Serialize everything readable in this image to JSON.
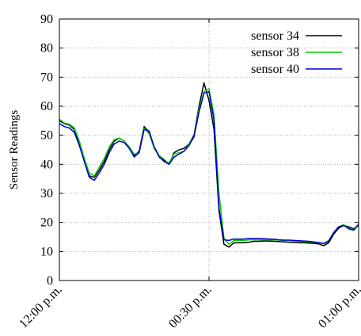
{
  "chart_data": {
    "type": "line",
    "title": "",
    "xlabel": "",
    "ylabel": "Sensor Readings",
    "ylim": [
      0,
      90
    ],
    "xlim": [
      "12:00 p.m.",
      "01:00 p.m."
    ],
    "y_ticks": [
      0,
      10,
      20,
      30,
      40,
      50,
      60,
      70,
      80,
      90
    ],
    "x_ticks": [
      {
        "minute": 0,
        "label": "12:00 p.m."
      },
      {
        "minute": 30,
        "label": "00:30 p.m."
      },
      {
        "minute": 60,
        "label": "01:00 p.m."
      }
    ],
    "grid": true,
    "legend_position": "top-right",
    "x_minutes": [
      0,
      1,
      2,
      3,
      4,
      5,
      6,
      7,
      8,
      9,
      10,
      11,
      12,
      13,
      14,
      15,
      16,
      17,
      18,
      19,
      20,
      21,
      22,
      23,
      24,
      25,
      26,
      27,
      28,
      29,
      30,
      31,
      32,
      33,
      34,
      35,
      36,
      37,
      38,
      39,
      40,
      41,
      42,
      43,
      44,
      45,
      46,
      47,
      48,
      49,
      50,
      51,
      52,
      53,
      54,
      55,
      56,
      57,
      58,
      59,
      60
    ],
    "series": [
      {
        "name": "sensor 34",
        "color": "#000000",
        "values": [
          55,
          54,
          53.5,
          52,
          47,
          41,
          36,
          35.5,
          38,
          41,
          45,
          48,
          49,
          48,
          46,
          43,
          44.5,
          53,
          51,
          46,
          43,
          41.5,
          40,
          44,
          45,
          45.5,
          47,
          50,
          60,
          68,
          62,
          52,
          24,
          12.5,
          11.5,
          13,
          13,
          13,
          13.2,
          13.5,
          13.5,
          13.6,
          13.6,
          13.5,
          13.4,
          13.3,
          13.2,
          13.1,
          13,
          13,
          12.9,
          12.8,
          12.6,
          12,
          13,
          16,
          18,
          19,
          18.5,
          17.8,
          19
        ]
      },
      {
        "name": "sensor 38",
        "color": "#00cc00",
        "values": [
          55.5,
          54.2,
          53.8,
          52.5,
          48,
          42,
          37,
          36,
          39,
          42,
          46,
          48.5,
          49,
          48,
          46,
          43.5,
          44,
          52.5,
          50.5,
          45.5,
          43,
          41,
          40.5,
          43.5,
          44,
          44.5,
          47,
          49.5,
          59,
          65,
          66,
          57,
          30,
          14.5,
          12.5,
          13.8,
          13.8,
          13.8,
          14,
          14,
          14,
          14,
          14,
          14,
          13.9,
          13.8,
          13.8,
          13.6,
          13.5,
          13.4,
          13.3,
          13.2,
          13,
          12.8,
          13.8,
          16.5,
          18.5,
          19.2,
          18,
          17.5,
          19.5
        ]
      },
      {
        "name": "sensor 40",
        "color": "#0000cc",
        "values": [
          54,
          53,
          52.5,
          51,
          46.5,
          41,
          35.5,
          34.5,
          37,
          40,
          44,
          47,
          48,
          47.5,
          45.5,
          42.5,
          44,
          52,
          51.5,
          46,
          42.5,
          41,
          40,
          42.5,
          43.5,
          44.5,
          46.5,
          49.5,
          58,
          64.5,
          65,
          55,
          25,
          14,
          13.8,
          14.3,
          14.2,
          14.3,
          14.5,
          14.5,
          14.5,
          14.4,
          14.3,
          14.2,
          14,
          13.9,
          13.9,
          13.8,
          13.7,
          13.6,
          13.5,
          13.3,
          13.1,
          12.7,
          13.5,
          16.5,
          18.5,
          19,
          17.8,
          17.3,
          19.2
        ]
      }
    ]
  }
}
